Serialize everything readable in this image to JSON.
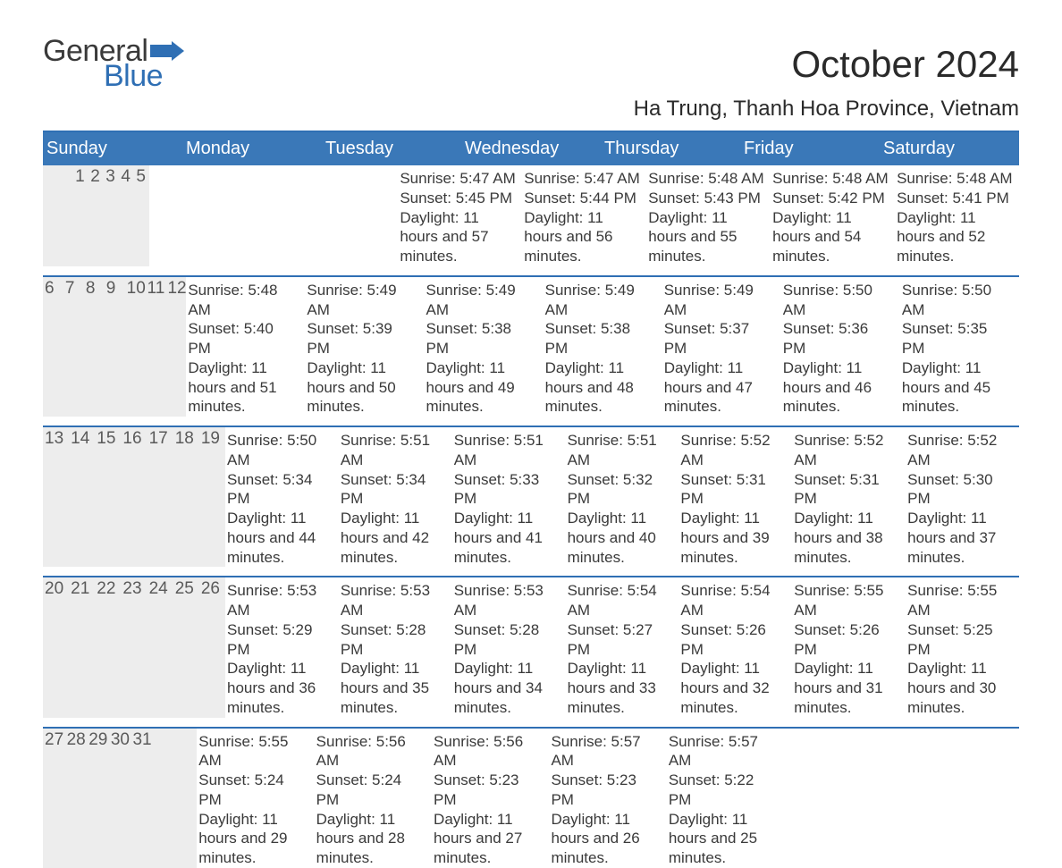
{
  "logo": {
    "text1": "General",
    "text2": "Blue",
    "flag_color": "#2f6fb4"
  },
  "title": "October 2024",
  "subtitle": "Ha Trung, Thanh Hoa Province, Vietnam",
  "colors": {
    "header_bg": "#3a78b8",
    "accent_border": "#2f6fb4",
    "daynum_bg": "#ededed",
    "text": "#3a3a3a",
    "logo_blue": "#2f6fb4"
  },
  "day_headers": [
    "Sunday",
    "Monday",
    "Tuesday",
    "Wednesday",
    "Thursday",
    "Friday",
    "Saturday"
  ],
  "weeks": [
    [
      null,
      null,
      {
        "n": "1",
        "sr": "5:47 AM",
        "ss": "5:45 PM",
        "dl": "11 hours and 57 minutes."
      },
      {
        "n": "2",
        "sr": "5:47 AM",
        "ss": "5:44 PM",
        "dl": "11 hours and 56 minutes."
      },
      {
        "n": "3",
        "sr": "5:48 AM",
        "ss": "5:43 PM",
        "dl": "11 hours and 55 minutes."
      },
      {
        "n": "4",
        "sr": "5:48 AM",
        "ss": "5:42 PM",
        "dl": "11 hours and 54 minutes."
      },
      {
        "n": "5",
        "sr": "5:48 AM",
        "ss": "5:41 PM",
        "dl": "11 hours and 52 minutes."
      }
    ],
    [
      {
        "n": "6",
        "sr": "5:48 AM",
        "ss": "5:40 PM",
        "dl": "11 hours and 51 minutes."
      },
      {
        "n": "7",
        "sr": "5:49 AM",
        "ss": "5:39 PM",
        "dl": "11 hours and 50 minutes."
      },
      {
        "n": "8",
        "sr": "5:49 AM",
        "ss": "5:38 PM",
        "dl": "11 hours and 49 minutes."
      },
      {
        "n": "9",
        "sr": "5:49 AM",
        "ss": "5:38 PM",
        "dl": "11 hours and 48 minutes."
      },
      {
        "n": "10",
        "sr": "5:49 AM",
        "ss": "5:37 PM",
        "dl": "11 hours and 47 minutes."
      },
      {
        "n": "11",
        "sr": "5:50 AM",
        "ss": "5:36 PM",
        "dl": "11 hours and 46 minutes."
      },
      {
        "n": "12",
        "sr": "5:50 AM",
        "ss": "5:35 PM",
        "dl": "11 hours and 45 minutes."
      }
    ],
    [
      {
        "n": "13",
        "sr": "5:50 AM",
        "ss": "5:34 PM",
        "dl": "11 hours and 44 minutes."
      },
      {
        "n": "14",
        "sr": "5:51 AM",
        "ss": "5:34 PM",
        "dl": "11 hours and 42 minutes."
      },
      {
        "n": "15",
        "sr": "5:51 AM",
        "ss": "5:33 PM",
        "dl": "11 hours and 41 minutes."
      },
      {
        "n": "16",
        "sr": "5:51 AM",
        "ss": "5:32 PM",
        "dl": "11 hours and 40 minutes."
      },
      {
        "n": "17",
        "sr": "5:52 AM",
        "ss": "5:31 PM",
        "dl": "11 hours and 39 minutes."
      },
      {
        "n": "18",
        "sr": "5:52 AM",
        "ss": "5:31 PM",
        "dl": "11 hours and 38 minutes."
      },
      {
        "n": "19",
        "sr": "5:52 AM",
        "ss": "5:30 PM",
        "dl": "11 hours and 37 minutes."
      }
    ],
    [
      {
        "n": "20",
        "sr": "5:53 AM",
        "ss": "5:29 PM",
        "dl": "11 hours and 36 minutes."
      },
      {
        "n": "21",
        "sr": "5:53 AM",
        "ss": "5:28 PM",
        "dl": "11 hours and 35 minutes."
      },
      {
        "n": "22",
        "sr": "5:53 AM",
        "ss": "5:28 PM",
        "dl": "11 hours and 34 minutes."
      },
      {
        "n": "23",
        "sr": "5:54 AM",
        "ss": "5:27 PM",
        "dl": "11 hours and 33 minutes."
      },
      {
        "n": "24",
        "sr": "5:54 AM",
        "ss": "5:26 PM",
        "dl": "11 hours and 32 minutes."
      },
      {
        "n": "25",
        "sr": "5:55 AM",
        "ss": "5:26 PM",
        "dl": "11 hours and 31 minutes."
      },
      {
        "n": "26",
        "sr": "5:55 AM",
        "ss": "5:25 PM",
        "dl": "11 hours and 30 minutes."
      }
    ],
    [
      {
        "n": "27",
        "sr": "5:55 AM",
        "ss": "5:24 PM",
        "dl": "11 hours and 29 minutes."
      },
      {
        "n": "28",
        "sr": "5:56 AM",
        "ss": "5:24 PM",
        "dl": "11 hours and 28 minutes."
      },
      {
        "n": "29",
        "sr": "5:56 AM",
        "ss": "5:23 PM",
        "dl": "11 hours and 27 minutes."
      },
      {
        "n": "30",
        "sr": "5:57 AM",
        "ss": "5:23 PM",
        "dl": "11 hours and 26 minutes."
      },
      {
        "n": "31",
        "sr": "5:57 AM",
        "ss": "5:22 PM",
        "dl": "11 hours and 25 minutes."
      },
      null,
      null
    ]
  ],
  "labels": {
    "sunrise": "Sunrise:",
    "sunset": "Sunset:",
    "daylight": "Daylight:"
  }
}
